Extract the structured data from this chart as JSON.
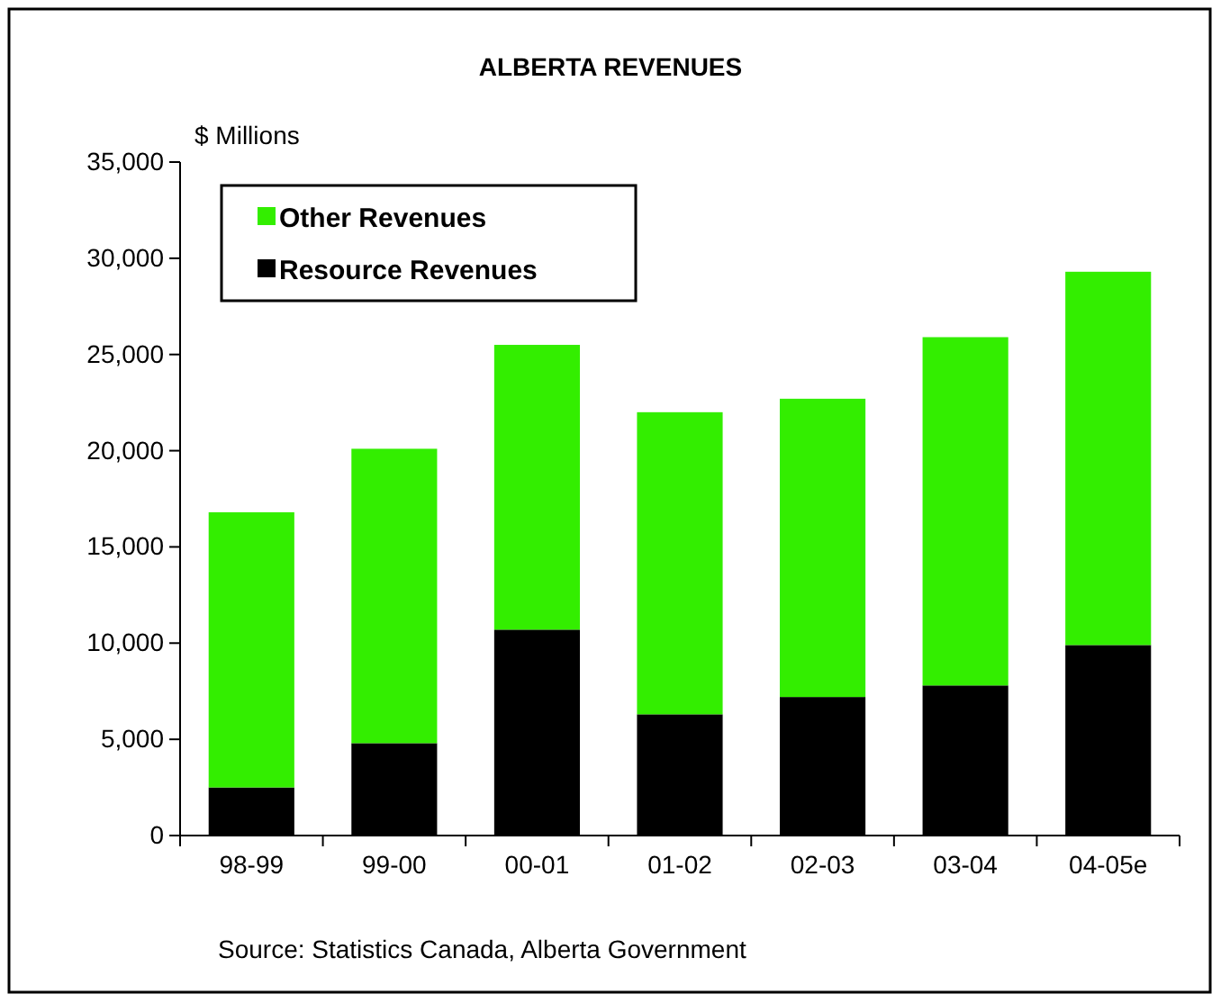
{
  "chart_data": {
    "type": "bar",
    "title": "ALBERTA REVENUES",
    "ylabel": "$ Millions",
    "categories": [
      "98-99",
      "99-00",
      "00-01",
      "01-02",
      "02-03",
      "03-04",
      "04-05e"
    ],
    "series": [
      {
        "name": "Resource Revenues",
        "color": "#000000",
        "values": [
          2500,
          4800,
          10700,
          6300,
          7200,
          7800,
          9900
        ]
      },
      {
        "name": "Other Revenues",
        "color": "#33ee00",
        "values": [
          14300,
          15300,
          14800,
          15700,
          15500,
          18100,
          19400
        ]
      }
    ],
    "stacked": true,
    "ylim": [
      0,
      35000
    ],
    "yticks": [
      {
        "value": 0,
        "label": "0"
      },
      {
        "value": 5000,
        "label": "5,000"
      },
      {
        "value": 10000,
        "label": "10,000"
      },
      {
        "value": 15000,
        "label": "15,000"
      },
      {
        "value": 20000,
        "label": "20,000"
      },
      {
        "value": 25000,
        "label": "25,000"
      },
      {
        "value": 30000,
        "label": "30,000"
      },
      {
        "value": 35000,
        "label": "35,000"
      }
    ],
    "grid": false,
    "legend": "top left",
    "annotations": [
      "Source: Statistics Canada, Alberta Government"
    ]
  }
}
